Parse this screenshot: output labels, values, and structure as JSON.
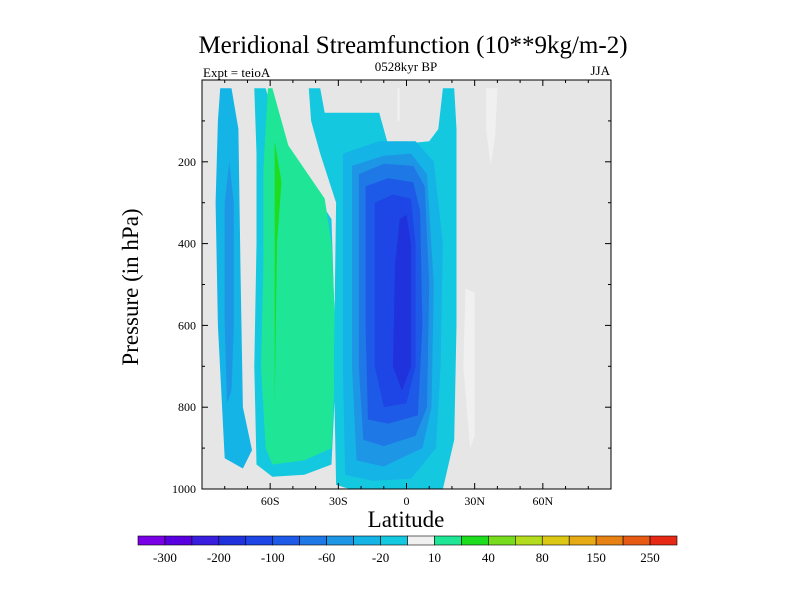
{
  "chart_data": {
    "type": "heatmap",
    "title": "Meridional Streamfunction (10**9kg/m-2)",
    "left_label": "Expt = teioA",
    "center_label": "0528kyr BP",
    "right_label": "JJA",
    "xlabel": "Latitude",
    "ylabel": "Pressure (in hPa)",
    "xlim": [
      -90,
      90
    ],
    "ylim": [
      0,
      1000
    ],
    "y_reversed": true,
    "x_ticks": [
      {
        "value": -60,
        "label": "60S"
      },
      {
        "value": -30,
        "label": "30S"
      },
      {
        "value": 0,
        "label": "0"
      },
      {
        "value": 30,
        "label": "30N"
      },
      {
        "value": 60,
        "label": "60N"
      }
    ],
    "y_ticks": [
      200,
      400,
      600,
      800,
      1000
    ],
    "background_color": "#e6e6e6",
    "colorbar": {
      "levels": [
        -300,
        -250,
        -200,
        -150,
        -100,
        -80,
        -60,
        -40,
        -20,
        -10,
        10,
        20,
        40,
        60,
        80,
        100,
        150,
        200,
        250,
        300
      ],
      "labeled_levels": [
        "-300",
        "-200",
        "-100",
        "-60",
        "-20",
        "10",
        "40",
        "80",
        "150",
        "250"
      ],
      "colors": [
        "#7a00e6",
        "#5a00e0",
        "#3a1ee0",
        "#2032dc",
        "#1e46e6",
        "#1e5ae8",
        "#1e78e6",
        "#1e96e6",
        "#14b4e6",
        "#14c8e0",
        "#f0f0f0",
        "#1ee696",
        "#1edc1e",
        "#78dc1e",
        "#b4dc1e",
        "#dcc814",
        "#e6aa14",
        "#e68214",
        "#e65a14",
        "#e62814"
      ]
    },
    "regions": [
      {
        "name": "cell-antarctic-blue",
        "value": -20,
        "lat": [
          [
            -82,
            20
          ],
          [
            -77,
            20
          ],
          [
            -74,
            120
          ],
          [
            -73,
            480
          ],
          [
            -72,
            800
          ],
          [
            -68,
            905
          ],
          [
            -72,
            950
          ],
          [
            -80,
            925
          ],
          [
            -83,
            600
          ],
          [
            -84,
            300
          ],
          [
            -83,
            100
          ]
        ]
      },
      {
        "name": "cell-antarctic-core",
        "value": -40,
        "lat": [
          [
            -78,
            200
          ],
          [
            -76,
            300
          ],
          [
            -76,
            600
          ],
          [
            -77,
            760
          ],
          [
            -79,
            790
          ],
          [
            -80,
            600
          ],
          [
            -80,
            300
          ]
        ]
      },
      {
        "name": "cell-south-cyan",
        "value": -10,
        "lat": [
          [
            -67,
            20
          ],
          [
            -62,
            20
          ],
          [
            -55,
            150
          ],
          [
            -33,
            340
          ],
          [
            -31,
            700
          ],
          [
            -33,
            940
          ],
          [
            -45,
            965
          ],
          [
            -59,
            970
          ],
          [
            -66,
            940
          ],
          [
            -67,
            700
          ],
          [
            -66,
            400
          ],
          [
            -66,
            180
          ]
        ]
      },
      {
        "name": "cell-south-green",
        "value": 20,
        "lat": [
          [
            -61,
            20
          ],
          [
            -59,
            20
          ],
          [
            -52,
            160
          ],
          [
            -36,
            290
          ],
          [
            -33,
            400
          ],
          [
            -31,
            650
          ],
          [
            -33,
            900
          ],
          [
            -45,
            930
          ],
          [
            -59,
            940
          ],
          [
            -62,
            900
          ],
          [
            -64,
            700
          ],
          [
            -63,
            450
          ],
          [
            -63,
            220
          ]
        ]
      },
      {
        "name": "cell-south-lightgreen",
        "value": 40,
        "lat": [
          [
            -58,
            150
          ],
          [
            -58,
            460
          ],
          [
            -58,
            800
          ],
          [
            -57,
            400
          ],
          [
            -55,
            250
          ]
        ]
      },
      {
        "name": "cell-hadley-edge",
        "value": -10,
        "lat": [
          [
            -43,
            20
          ],
          [
            -38,
            20
          ],
          [
            -36,
            80
          ],
          [
            -12,
            80
          ],
          [
            -8,
            160
          ],
          [
            10,
            150
          ],
          [
            14,
            120
          ],
          [
            16,
            20
          ],
          [
            21,
            20
          ],
          [
            22,
            120
          ],
          [
            22,
            600
          ],
          [
            21,
            880
          ],
          [
            16,
            1000
          ],
          [
            -5,
            1000
          ],
          [
            -25,
            1000
          ],
          [
            -31,
            990
          ],
          [
            -32,
            700
          ],
          [
            -31,
            300
          ],
          [
            -38,
            180
          ],
          [
            -42,
            100
          ]
        ]
      },
      {
        "name": "cell-hadley-20",
        "value": -20,
        "lat": [
          [
            -28,
            180
          ],
          [
            -12,
            150
          ],
          [
            4,
            150
          ],
          [
            12,
            200
          ],
          [
            16,
            400
          ],
          [
            15,
            700
          ],
          [
            13,
            900
          ],
          [
            2,
            975
          ],
          [
            -15,
            980
          ],
          [
            -27,
            965
          ],
          [
            -28,
            700
          ],
          [
            -28,
            400
          ]
        ]
      },
      {
        "name": "cell-hadley-40",
        "value": -40,
        "lat": [
          [
            -24,
            210
          ],
          [
            -10,
            185
          ],
          [
            2,
            180
          ],
          [
            9,
            230
          ],
          [
            12,
            500
          ],
          [
            11,
            800
          ],
          [
            7,
            900
          ],
          [
            -10,
            945
          ],
          [
            -22,
            930
          ],
          [
            -24,
            700
          ],
          [
            -24,
            400
          ]
        ]
      },
      {
        "name": "cell-hadley-60",
        "value": -60,
        "lat": [
          [
            -21,
            230
          ],
          [
            -10,
            205
          ],
          [
            3,
            210
          ],
          [
            8,
            260
          ],
          [
            10,
            500
          ],
          [
            9,
            800
          ],
          [
            4,
            870
          ],
          [
            -10,
            895
          ],
          [
            -19,
            880
          ],
          [
            -21,
            700
          ],
          [
            -21,
            400
          ]
        ]
      },
      {
        "name": "cell-hadley-80",
        "value": -80,
        "lat": [
          [
            -18,
            260
          ],
          [
            -8,
            240
          ],
          [
            3,
            250
          ],
          [
            6,
            320
          ],
          [
            7,
            600
          ],
          [
            5,
            820
          ],
          [
            -8,
            840
          ],
          [
            -17,
            830
          ],
          [
            -18,
            600
          ]
        ]
      },
      {
        "name": "cell-hadley-100",
        "value": -100,
        "lat": [
          [
            -14,
            300
          ],
          [
            -6,
            280
          ],
          [
            2,
            290
          ],
          [
            4,
            400
          ],
          [
            4,
            700
          ],
          [
            0,
            790
          ],
          [
            -10,
            800
          ],
          [
            -14,
            700
          ],
          [
            -14,
            450
          ]
        ]
      },
      {
        "name": "cell-hadley-core",
        "value": -150,
        "lat": [
          [
            -3,
            340
          ],
          [
            0,
            330
          ],
          [
            2,
            400
          ],
          [
            2,
            700
          ],
          [
            -2,
            760
          ],
          [
            -6,
            700
          ],
          [
            -5,
            450
          ]
        ]
      },
      {
        "name": "cell-north-thin",
        "value": 10,
        "lat": [
          [
            26,
            510
          ],
          [
            30,
            520
          ],
          [
            30,
            870
          ],
          [
            28,
            900
          ],
          [
            25,
            700
          ]
        ]
      },
      {
        "name": "cell-north-upper",
        "value": 10,
        "lat": [
          [
            35,
            20
          ],
          [
            40,
            20
          ],
          [
            39,
            140
          ],
          [
            37,
            210
          ],
          [
            35,
            120
          ]
        ]
      },
      {
        "name": "cell-north-line",
        "value": 10,
        "lat": [
          [
            -4,
            20
          ],
          [
            -3,
            20
          ],
          [
            -3,
            100
          ],
          [
            -4,
            100
          ]
        ]
      }
    ]
  }
}
